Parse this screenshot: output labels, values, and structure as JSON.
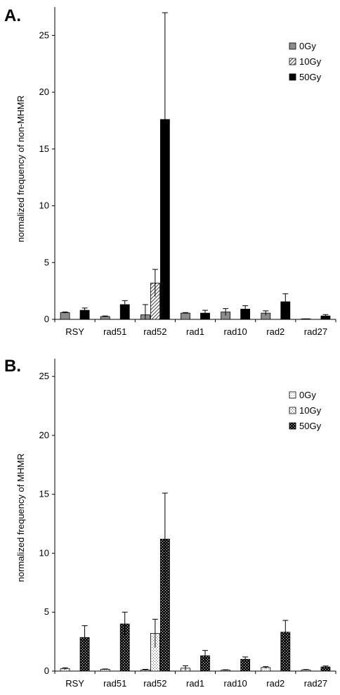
{
  "panel_labels": [
    "A.",
    "B."
  ],
  "chart_data": [
    {
      "type": "bar",
      "title": "",
      "xlabel": "",
      "ylabel": "normalized frequency of non-MHMR",
      "ylim": [
        0,
        27.5
      ],
      "yticks": [
        0,
        5,
        10,
        15,
        20,
        25
      ],
      "categories": [
        "RSY",
        "rad51",
        "rad52",
        "rad1",
        "rad10",
        "rad2",
        "rad27"
      ],
      "legend_position": "top-right",
      "series": [
        {
          "name": "0Gy",
          "fill": "gray",
          "values": [
            0.6,
            0.25,
            0.4,
            0.55,
            0.65,
            0.55,
            0.02
          ],
          "errors": [
            0.05,
            0.05,
            0.9,
            0.05,
            0.3,
            0.2,
            0.02
          ]
        },
        {
          "name": "10Gy",
          "fill": "hatch",
          "values": [
            null,
            null,
            3.2,
            null,
            null,
            null,
            null
          ],
          "errors": [
            null,
            null,
            1.2,
            null,
            null,
            null,
            null
          ]
        },
        {
          "name": "50Gy",
          "fill": "black",
          "values": [
            0.8,
            1.3,
            17.6,
            0.55,
            0.9,
            1.55,
            0.3
          ],
          "errors": [
            0.2,
            0.35,
            9.4,
            0.25,
            0.3,
            0.7,
            0.12
          ]
        }
      ],
      "colors": {
        "gray": "#8c8c8c",
        "black": "#000000"
      }
    },
    {
      "type": "bar",
      "title": "",
      "xlabel": "",
      "ylabel": "normalized frequency of MHMR",
      "ylim": [
        0,
        26.5
      ],
      "yticks": [
        0,
        5,
        10,
        15,
        20,
        25
      ],
      "categories": [
        "RSY",
        "rad51",
        "rad52",
        "rad1",
        "rad10",
        "rad2",
        "rad27"
      ],
      "legend_position": "top-right",
      "series": [
        {
          "name": "0Gy",
          "fill": "light-dotted",
          "values": [
            0.2,
            0.15,
            0.1,
            0.25,
            0.08,
            0.3,
            0.1
          ],
          "errors": [
            0.08,
            0.03,
            0.05,
            0.2,
            0.03,
            0.08,
            0.03
          ]
        },
        {
          "name": "10Gy",
          "fill": "dotted",
          "values": [
            null,
            null,
            3.2,
            null,
            null,
            null,
            null
          ],
          "errors": [
            null,
            null,
            1.2,
            null,
            null,
            null,
            null
          ]
        },
        {
          "name": "50Gy",
          "fill": "black-dotted",
          "values": [
            2.85,
            4.0,
            11.2,
            1.3,
            1.0,
            3.3,
            0.35
          ],
          "errors": [
            1.0,
            1.0,
            3.9,
            0.45,
            0.2,
            1.0,
            0.08
          ]
        }
      ],
      "colors": {
        "black": "#000000"
      }
    }
  ]
}
